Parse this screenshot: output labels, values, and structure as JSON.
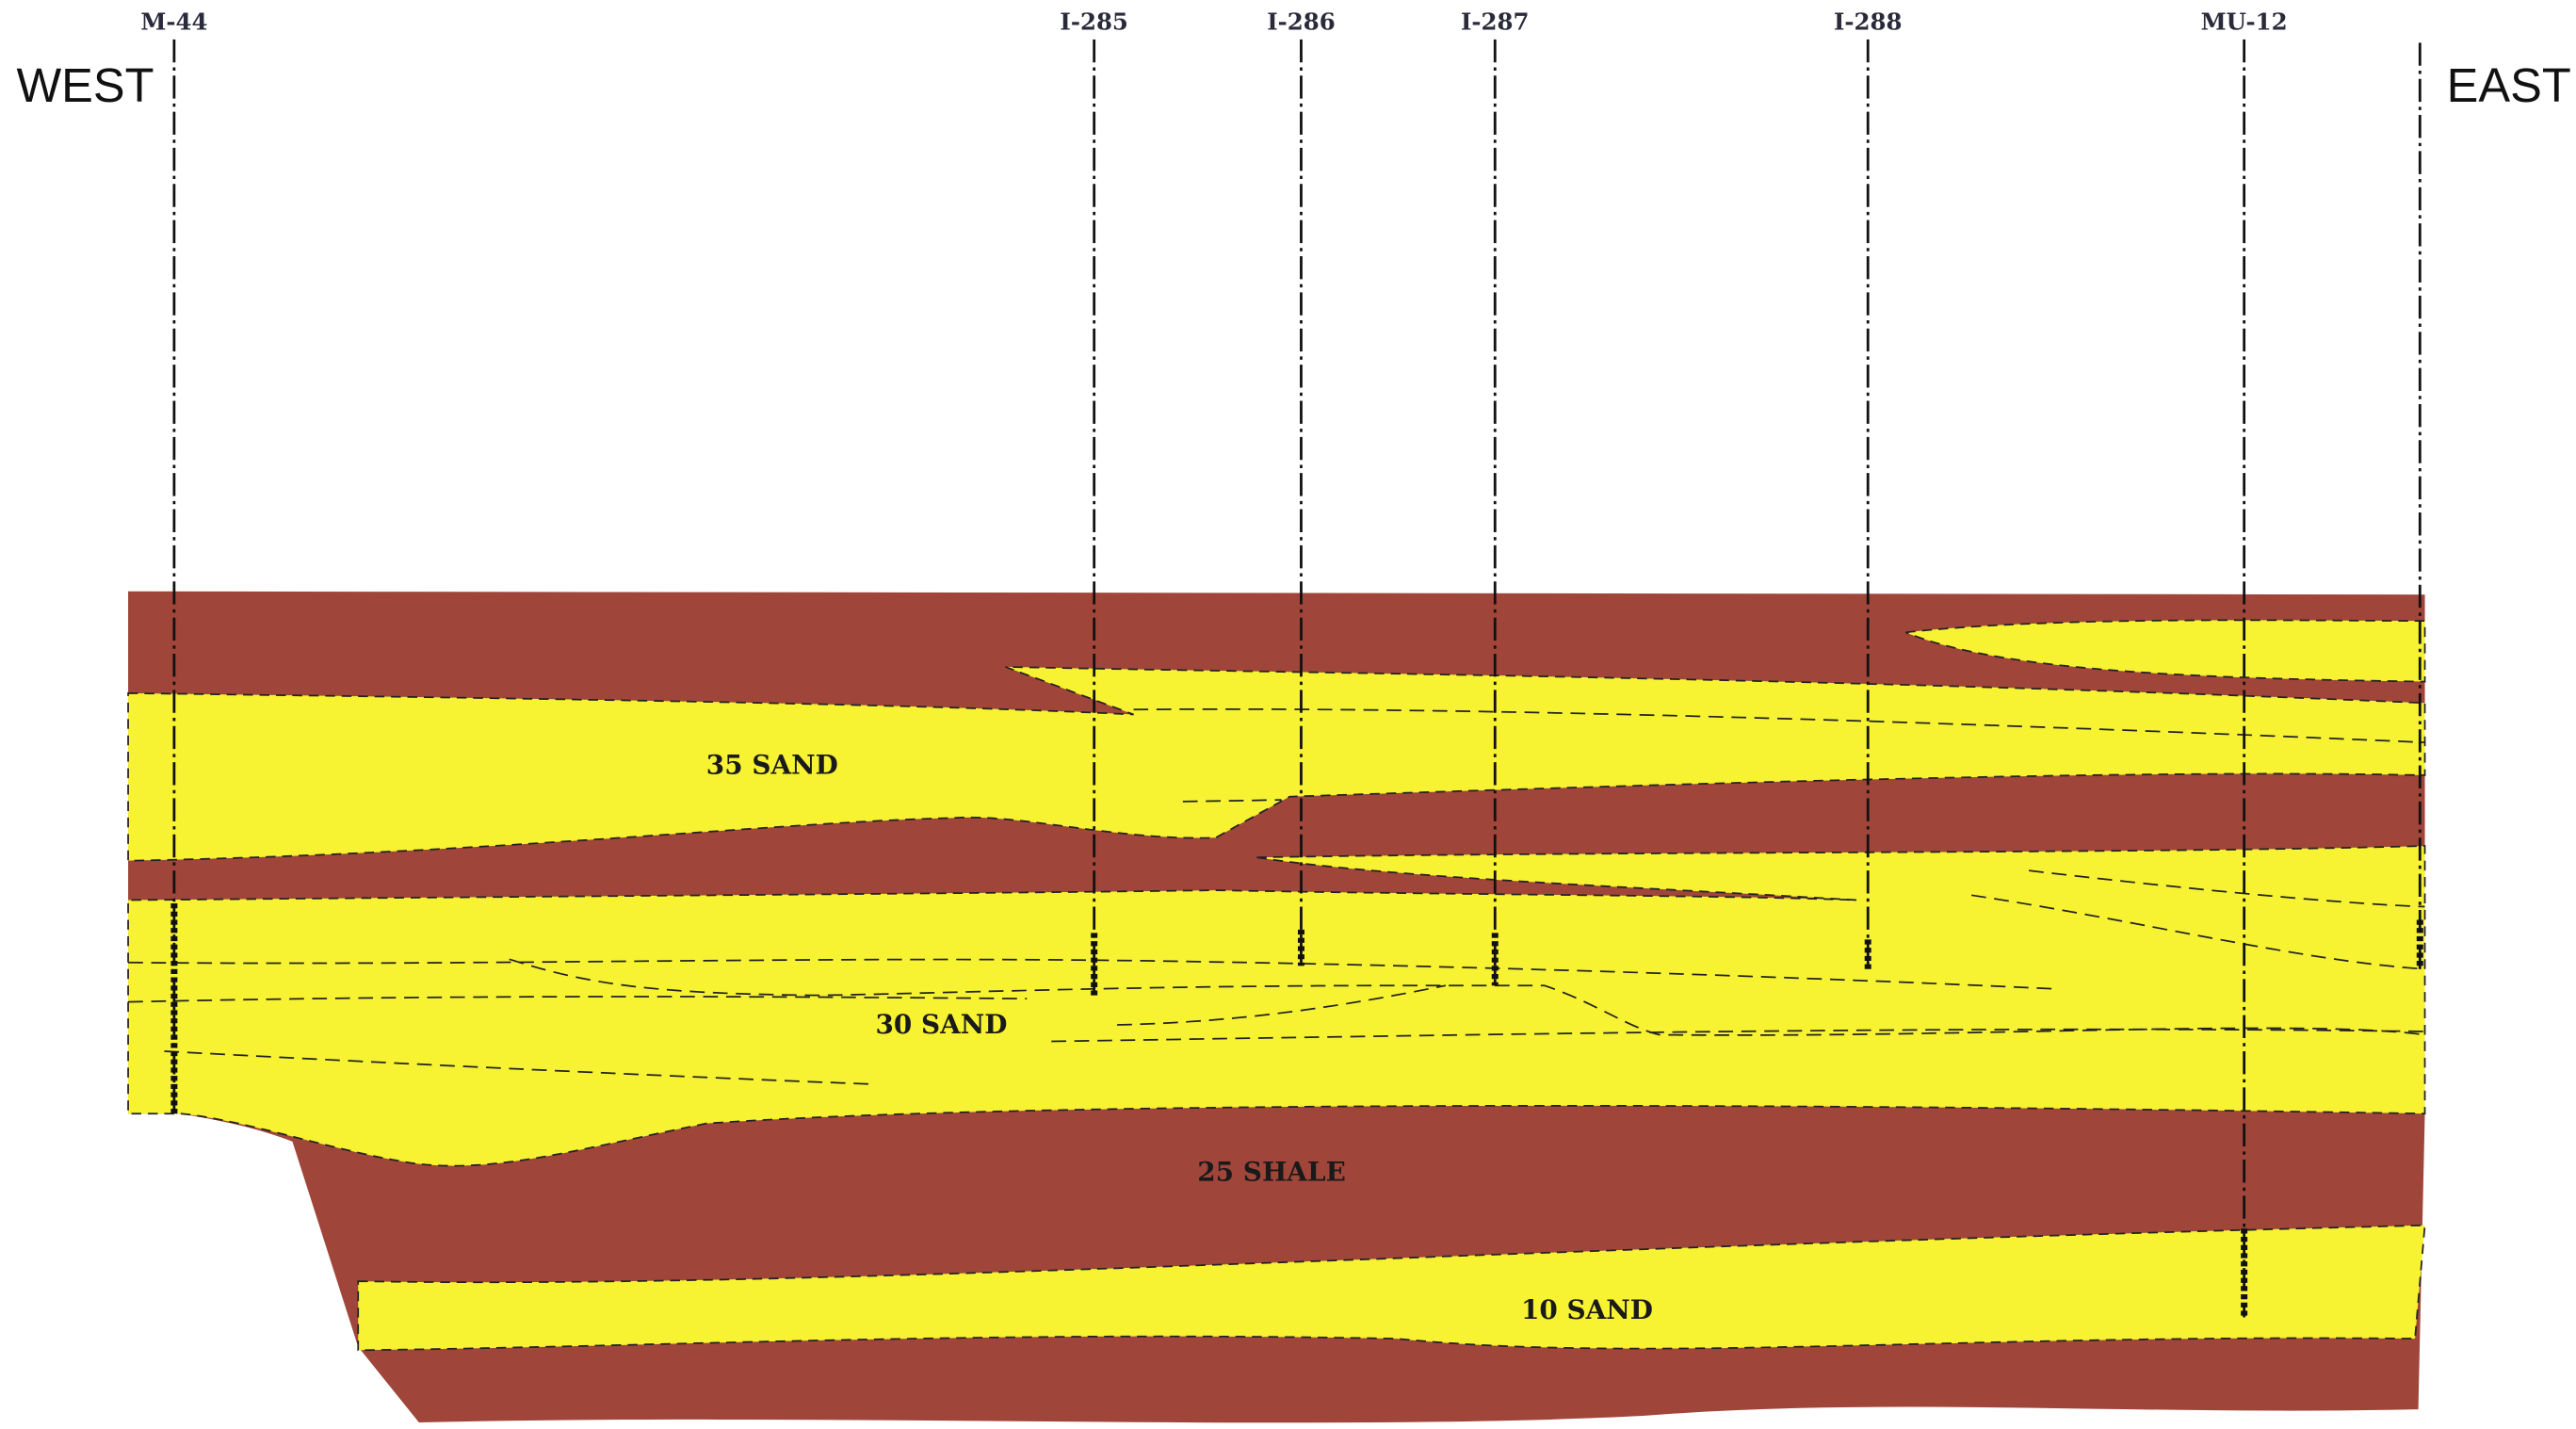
{
  "header": {
    "west": "WEST",
    "east": "EAST"
  },
  "wells": [
    {
      "label": "M-44"
    },
    {
      "label": "I-285"
    },
    {
      "label": "I-286"
    },
    {
      "label": "I-287"
    },
    {
      "label": "I-288"
    },
    {
      "label": "MU-12"
    }
  ],
  "units": [
    {
      "label": "35 SAND"
    },
    {
      "label": "30 SAND"
    },
    {
      "label": "25 SHALE"
    },
    {
      "label": "10 SAND"
    }
  ]
}
